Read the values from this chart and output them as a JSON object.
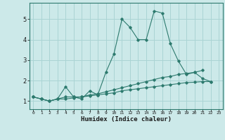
{
  "title": "",
  "xlabel": "Humidex (Indice chaleur)",
  "ylabel": "",
  "background_color": "#cce9e9",
  "grid_color": "#aad4d4",
  "line_color": "#2d7a6e",
  "x_ticks": [
    0,
    1,
    2,
    3,
    4,
    5,
    6,
    7,
    8,
    9,
    10,
    11,
    12,
    13,
    14,
    15,
    16,
    17,
    18,
    19,
    20,
    21,
    22,
    23
  ],
  "y_ticks": [
    1,
    2,
    3,
    4,
    5
  ],
  "ylim": [
    0.6,
    5.8
  ],
  "xlim": [
    -0.5,
    23.5
  ],
  "series": [
    [
      1.2,
      1.1,
      1.0,
      1.1,
      1.7,
      1.2,
      1.1,
      1.5,
      1.3,
      2.4,
      3.3,
      5.0,
      4.6,
      4.0,
      4.0,
      5.4,
      5.3,
      3.8,
      2.95,
      2.3,
      2.4,
      2.1,
      1.95,
      null
    ],
    [
      1.2,
      1.1,
      1.0,
      1.1,
      1.2,
      1.2,
      1.2,
      1.3,
      1.35,
      1.45,
      1.55,
      1.65,
      1.75,
      1.85,
      1.95,
      2.05,
      2.15,
      2.2,
      2.3,
      2.35,
      2.4,
      2.5,
      null,
      null
    ],
    [
      1.2,
      1.1,
      1.0,
      1.1,
      1.1,
      1.15,
      1.2,
      1.25,
      1.3,
      1.35,
      1.4,
      1.5,
      1.55,
      1.6,
      1.65,
      1.7,
      1.75,
      1.8,
      1.85,
      1.9,
      1.92,
      1.95,
      1.95,
      null
    ]
  ]
}
